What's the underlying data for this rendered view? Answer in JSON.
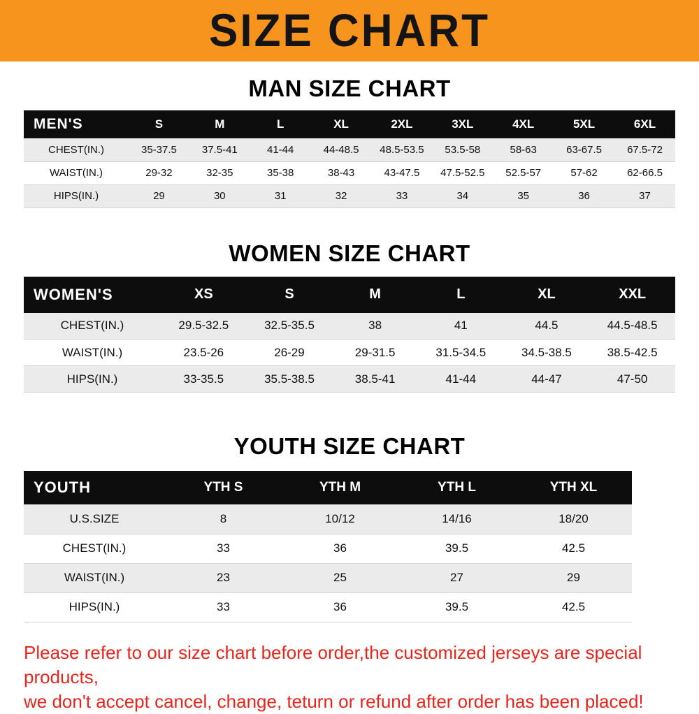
{
  "banner": {
    "title": "SIZE CHART",
    "bg_color": "#F7941E",
    "text_color": "#141414"
  },
  "sections": {
    "men": {
      "heading": "MAN SIZE CHART",
      "table": {
        "header_label": "MEN'S",
        "columns": [
          "S",
          "M",
          "L",
          "XL",
          "2XL",
          "3XL",
          "4XL",
          "5XL",
          "6XL"
        ],
        "rows": [
          {
            "label": "CHEST(IN.)",
            "values": [
              "35-37.5",
              "37.5-41",
              "41-44",
              "44-48.5",
              "48.5-53.5",
              "53.5-58",
              "58-63",
              "63-67.5",
              "67.5-72"
            ]
          },
          {
            "label": "WAIST(IN.)",
            "values": [
              "29-32",
              "32-35",
              "35-38",
              "38-43",
              "43-47.5",
              "47.5-52.5",
              "52.5-57",
              "57-62",
              "62-66.5"
            ]
          },
          {
            "label": "HIPS(IN.)",
            "values": [
              "29",
              "30",
              "31",
              "32",
              "33",
              "34",
              "35",
              "36",
              "37"
            ]
          }
        ]
      }
    },
    "women": {
      "heading": "WOMEN SIZE CHART",
      "table": {
        "header_label": "WOMEN'S",
        "columns": [
          "XS",
          "S",
          "M",
          "L",
          "XL",
          "XXL"
        ],
        "rows": [
          {
            "label": "CHEST(IN.)",
            "values": [
              "29.5-32.5",
              "32.5-35.5",
              "38",
              "41",
              "44.5",
              "44.5-48.5"
            ]
          },
          {
            "label": "WAIST(IN.)",
            "values": [
              "23.5-26",
              "26-29",
              "29-31.5",
              "31.5-34.5",
              "34.5-38.5",
              "38.5-42.5"
            ]
          },
          {
            "label": "HIPS(IN.)",
            "values": [
              "33-35.5",
              "35.5-38.5",
              "38.5-41",
              "41-44",
              "44-47",
              "47-50"
            ]
          }
        ]
      }
    },
    "youth": {
      "heading": "YOUTH SIZE CHART",
      "table": {
        "header_label": "YOUTH",
        "columns": [
          "YTH S",
          "YTH M",
          "YTH L",
          "YTH XL"
        ],
        "rows": [
          {
            "label": "U.S.SIZE",
            "values": [
              "8",
              "10/12",
              "14/16",
              "18/20"
            ]
          },
          {
            "label": "CHEST(IN.)",
            "values": [
              "33",
              "36",
              "39.5",
              "42.5"
            ]
          },
          {
            "label": "WAIST(IN.)",
            "values": [
              "23",
              "25",
              "27",
              "29"
            ]
          },
          {
            "label": "HIPS(IN.)",
            "values": [
              "33",
              "36",
              "39.5",
              "42.5"
            ]
          }
        ]
      }
    }
  },
  "footer": {
    "line1": "Please refer to our size chart before order,the customized jerseys are special products,",
    "line2": "we don't accept cancel, change, teturn or refund after order has been placed!",
    "text_color": "#E5261F"
  }
}
